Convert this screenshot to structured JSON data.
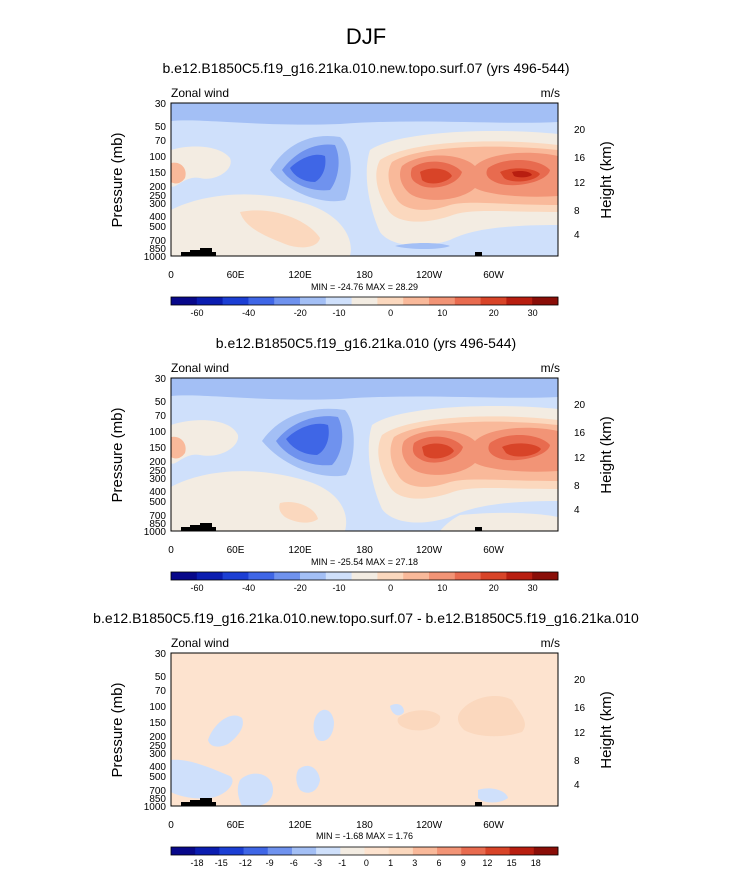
{
  "page_title": "DJF",
  "colors": {
    "shared_scale": [
      "#08088a",
      "#0b1db0",
      "#1c3fd4",
      "#3f66e6",
      "#6f92ee",
      "#a3bff5",
      "#cfe0fb",
      "#f3ece2",
      "#fbd8be",
      "#f9b99a",
      "#f29476",
      "#e86b4f",
      "#d84428",
      "#b81e10",
      "#8a0e08"
    ],
    "diff_scale": [
      "#08088a",
      "#0b1db0",
      "#1c3fd4",
      "#3f66e6",
      "#6f92ee",
      "#a3bff5",
      "#cfe0fb",
      "#f3ece2",
      "#fde3cf",
      "#fbd8be",
      "#f9b99a",
      "#f29476",
      "#e86b4f",
      "#d84428",
      "#b81e10",
      "#8a0e08"
    ]
  },
  "chart_data": [
    {
      "type": "heatmap",
      "title": "b.e12.B1850C5.f19_g16.21ka.010.new.topo.surf.07 (yrs 496-544)",
      "variable_label": "Zonal wind",
      "units_label": "m/s",
      "ylabel": "Pressure (mb)",
      "y2label": "Height (km)",
      "x_ticks": [
        "0",
        "60E",
        "120E",
        "180",
        "120W",
        "60W"
      ],
      "y_ticks": [
        "30",
        "50",
        "70",
        "100",
        "150",
        "200",
        "250",
        "300",
        "400",
        "500",
        "700",
        "850",
        "1000"
      ],
      "y2_ticks": [
        "4",
        "8",
        "12",
        "16",
        "20"
      ],
      "stats": "MIN = -24.76   MAX =  28.29",
      "colorbar_labels": [
        "-60",
        "-40",
        "-20",
        "-10",
        "0",
        "10",
        "20",
        "30"
      ],
      "xlim": [
        0,
        360
      ],
      "ylim": [
        1000,
        30
      ],
      "features": [
        {
          "lon": 135,
          "p": 150,
          "value": -22
        },
        {
          "lon": 215,
          "p": 170,
          "value": 25
        },
        {
          "lon": 300,
          "p": 160,
          "value": 28
        },
        {
          "lon": 0,
          "p": 160,
          "value": 12
        }
      ]
    },
    {
      "type": "heatmap",
      "title": "b.e12.B1850C5.f19_g16.21ka.010 (yrs 496-544)",
      "variable_label": "Zonal wind",
      "units_label": "m/s",
      "ylabel": "Pressure (mb)",
      "y2label": "Height (km)",
      "x_ticks": [
        "0",
        "60E",
        "120E",
        "180",
        "120W",
        "60W"
      ],
      "y_ticks": [
        "30",
        "50",
        "70",
        "100",
        "150",
        "200",
        "250",
        "300",
        "400",
        "500",
        "700",
        "850",
        "1000"
      ],
      "y2_ticks": [
        "4",
        "8",
        "12",
        "16",
        "20"
      ],
      "stats": "MIN = -25.54   MAX =  27.18",
      "colorbar_labels": [
        "-60",
        "-40",
        "-20",
        "-10",
        "0",
        "10",
        "20",
        "30"
      ],
      "xlim": [
        0,
        360
      ],
      "ylim": [
        1000,
        30
      ],
      "features": [
        {
          "lon": 135,
          "p": 150,
          "value": -23
        },
        {
          "lon": 215,
          "p": 170,
          "value": 25
        },
        {
          "lon": 300,
          "p": 160,
          "value": 27
        },
        {
          "lon": 0,
          "p": 160,
          "value": 12
        }
      ]
    },
    {
      "type": "heatmap",
      "title": "b.e12.B1850C5.f19_g16.21ka.010.new.topo.surf.07 - b.e12.B1850C5.f19_g16.21ka.010",
      "variable_label": "Zonal wind",
      "units_label": "m/s",
      "ylabel": "Pressure (mb)",
      "y2label": "Height (km)",
      "x_ticks": [
        "0",
        "60E",
        "120E",
        "180",
        "120W",
        "60W"
      ],
      "y_ticks": [
        "30",
        "50",
        "70",
        "100",
        "150",
        "200",
        "250",
        "300",
        "400",
        "500",
        "700",
        "850",
        "1000"
      ],
      "y2_ticks": [
        "4",
        "8",
        "12",
        "16",
        "20"
      ],
      "stats": "MIN = -1.68   MAX =  1.76",
      "colorbar_labels": [
        "-18",
        "-15",
        "-12",
        "-9",
        "-6",
        "-3",
        "-1",
        "0",
        "1",
        "3",
        "6",
        "9",
        "12",
        "15",
        "18"
      ],
      "xlim": [
        0,
        360
      ],
      "ylim": [
        1000,
        30
      ],
      "features": [
        {
          "lon": 250,
          "p": 120,
          "value": 1.5
        },
        {
          "lon": 300,
          "p": 110,
          "value": 1.7
        },
        {
          "lon": 70,
          "p": 150,
          "value": -1.5
        },
        {
          "lon": 80,
          "p": 700,
          "value": -1.6
        }
      ]
    }
  ]
}
